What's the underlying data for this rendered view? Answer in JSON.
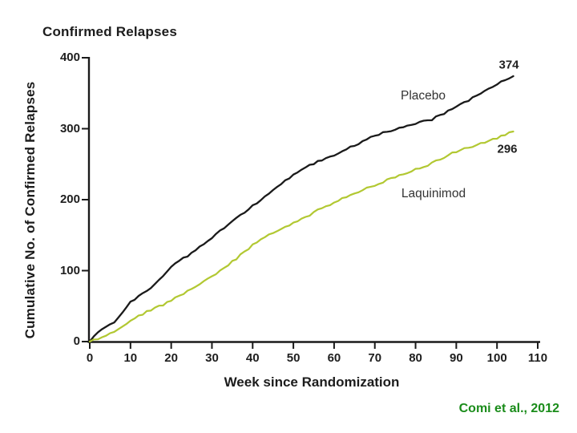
{
  "title": "Confirmed Relapses",
  "citation": "Comi et al., 2012",
  "colors": {
    "placebo_line": "#1a1a1a",
    "laquinimod_line": "#b2c832",
    "axis": "#1a1a1a",
    "citation_green": "#1a8c1a"
  },
  "annotations": {
    "placebo_label": "Placebo",
    "laquinimod_label": "Laquinimod",
    "placebo_end_value": "374",
    "laquinimod_end_value": "296"
  },
  "chart_data": {
    "type": "line",
    "title": "Confirmed Relapses",
    "xlabel": "Week since Randomization",
    "ylabel": "Cumulative No. of Confirmed Relapses",
    "xlim": [
      0,
      110
    ],
    "ylim": [
      0,
      400
    ],
    "x_ticks": [
      0,
      10,
      20,
      30,
      40,
      50,
      60,
      70,
      80,
      90,
      100,
      110
    ],
    "y_ticks": [
      0,
      100,
      200,
      300,
      400
    ],
    "grid": false,
    "legend_position": "inline-labels",
    "series": [
      {
        "name": "Placebo",
        "color": "#1a1a1a",
        "final_value": 374,
        "x": [
          0,
          2,
          4,
          6,
          8,
          10,
          12,
          14,
          16,
          18,
          20,
          24,
          28,
          32,
          36,
          40,
          44,
          48,
          52,
          56,
          60,
          64,
          68,
          72,
          76,
          80,
          84,
          88,
          92,
          96,
          100,
          104
        ],
        "y": [
          0,
          14,
          22,
          27,
          40,
          55,
          64,
          72,
          81,
          93,
          106,
          121,
          137,
          156,
          173,
          191,
          209,
          227,
          242,
          254,
          263,
          274,
          285,
          294,
          301,
          308,
          313,
          325,
          337,
          349,
          363,
          374
        ]
      },
      {
        "name": "Laquinimod",
        "color": "#b2c832",
        "final_value": 296,
        "x": [
          0,
          2,
          4,
          6,
          8,
          10,
          12,
          14,
          16,
          18,
          20,
          24,
          28,
          32,
          36,
          40,
          44,
          48,
          52,
          56,
          60,
          64,
          68,
          72,
          76,
          80,
          84,
          88,
          92,
          96,
          100,
          104
        ],
        "y": [
          0,
          4,
          9,
          15,
          22,
          30,
          36,
          42,
          47,
          52,
          58,
          71,
          84,
          99,
          117,
          136,
          151,
          161,
          172,
          185,
          196,
          207,
          216,
          225,
          234,
          243,
          251,
          263,
          272,
          279,
          287,
          296
        ]
      }
    ]
  }
}
